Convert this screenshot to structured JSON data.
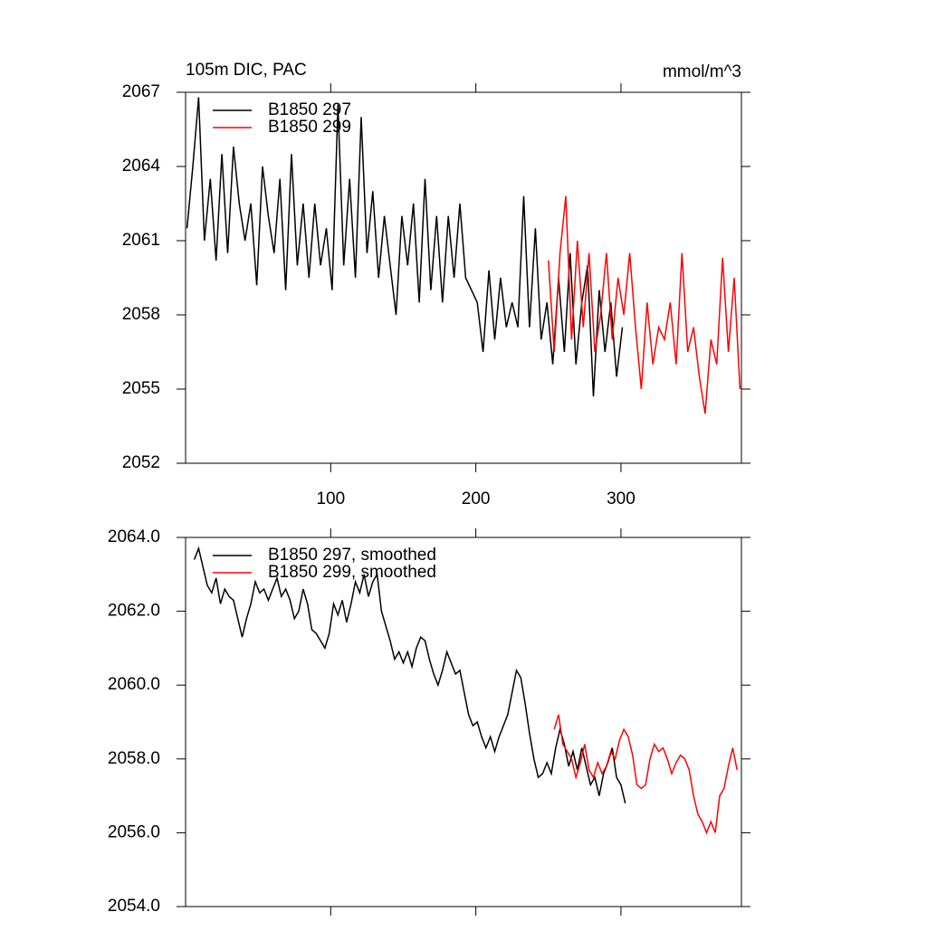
{
  "chart_data": [
    {
      "type": "line",
      "title": "105m DIC, PAC",
      "units": "mmol/m^3",
      "xlim": [
        0,
        383
      ],
      "xticks": [
        100,
        200,
        300
      ],
      "show_xtick_labels": true,
      "ylim": [
        2052,
        2067
      ],
      "yticks": [
        2052,
        2055,
        2058,
        2061,
        2064,
        2067
      ],
      "series": [
        {
          "name": "B1850 297",
          "color": "#000000",
          "x": [
            1,
            5,
            9,
            13,
            17,
            21,
            25,
            29,
            33,
            37,
            41,
            45,
            49,
            53,
            57,
            61,
            65,
            69,
            73,
            77,
            81,
            85,
            89,
            93,
            97,
            101,
            105,
            109,
            113,
            117,
            121,
            125,
            129,
            133,
            137,
            141,
            145,
            149,
            153,
            157,
            161,
            165,
            169,
            173,
            177,
            181,
            185,
            189,
            193,
            197,
            201,
            205,
            209,
            213,
            217,
            221,
            225,
            229,
            233,
            237,
            241,
            245,
            249,
            253,
            257,
            261,
            265,
            269,
            273,
            277,
            281,
            285,
            289,
            293,
            297,
            301
          ],
          "values": [
            2061.5,
            2064,
            2066.8,
            2061,
            2063.5,
            2060.2,
            2064.5,
            2060.5,
            2064.8,
            2062.5,
            2061,
            2062.5,
            2059.2,
            2064,
            2062,
            2060.5,
            2063.5,
            2059,
            2064.5,
            2060,
            2062.5,
            2059.5,
            2062.5,
            2060,
            2061.5,
            2059,
            2066.5,
            2060,
            2063.5,
            2059.5,
            2066,
            2060.5,
            2063,
            2059.5,
            2062,
            2060,
            2058,
            2062,
            2060,
            2062.5,
            2058.5,
            2063.5,
            2059,
            2062,
            2058.5,
            2062,
            2059.5,
            2062.5,
            2059.5,
            2059,
            2058.5,
            2056.5,
            2059.8,
            2057,
            2059.5,
            2057.5,
            2058.5,
            2057.5,
            2062.8,
            2057.5,
            2061.5,
            2057,
            2058.5,
            2056,
            2059.5,
            2056.5,
            2060.5,
            2056,
            2058.5,
            2060,
            2054.7,
            2059,
            2056.5,
            2058.5,
            2055.5,
            2057.5
          ]
        },
        {
          "name": "B1850 299",
          "color": "#ff0000",
          "x": [
            250,
            254,
            258,
            262,
            266,
            270,
            274,
            278,
            282,
            286,
            290,
            294,
            298,
            302,
            306,
            310,
            314,
            318,
            322,
            326,
            330,
            334,
            338,
            342,
            346,
            350,
            354,
            358,
            362,
            366,
            370,
            374,
            378,
            382
          ],
          "values": [
            2060.2,
            2056.5,
            2060.5,
            2062.8,
            2057,
            2061,
            2057.5,
            2060.5,
            2056.5,
            2058,
            2060.5,
            2057,
            2059.5,
            2058,
            2060.5,
            2057.5,
            2055,
            2058.5,
            2056,
            2057.5,
            2057,
            2058.5,
            2056,
            2060.5,
            2056.5,
            2057.5,
            2055.5,
            2054,
            2057,
            2056,
            2060.3,
            2056.5,
            2059.5,
            2055
          ]
        }
      ]
    },
    {
      "type": "line",
      "xlim": [
        0,
        383
      ],
      "xticks": [
        100,
        200,
        300
      ],
      "show_xtick_labels": false,
      "ylim": [
        2054,
        2064
      ],
      "yticks": [
        {
          "value": 2054,
          "label": "2054.0"
        },
        {
          "value": 2056,
          "label": "2056.0"
        },
        {
          "value": 2058,
          "label": "2058.0"
        },
        {
          "value": 2060,
          "label": "2060.0"
        },
        {
          "value": 2062,
          "label": "2062.0"
        },
        {
          "value": 2064,
          "label": "2064.0"
        }
      ],
      "series": [
        {
          "name": "B1850 297, smoothed",
          "color": "#000000",
          "x": [
            6,
            9,
            12,
            15,
            18,
            21,
            24,
            27,
            30,
            33,
            36,
            39,
            42,
            45,
            48,
            51,
            54,
            57,
            60,
            63,
            66,
            69,
            72,
            75,
            78,
            81,
            84,
            87,
            90,
            93,
            96,
            99,
            102,
            105,
            108,
            111,
            114,
            117,
            120,
            123,
            126,
            129,
            132,
            135,
            138,
            141,
            144,
            147,
            150,
            153,
            156,
            159,
            162,
            165,
            168,
            171,
            174,
            177,
            180,
            183,
            186,
            189,
            192,
            195,
            198,
            201,
            204,
            207,
            210,
            213,
            216,
            219,
            222,
            225,
            228,
            231,
            234,
            237,
            240,
            243,
            246,
            249,
            252,
            255,
            258,
            261,
            264,
            267,
            270,
            273,
            276,
            279,
            282,
            285,
            288,
            291,
            294,
            297,
            300,
            303
          ],
          "values": [
            2063.4,
            2063.7,
            2063.2,
            2062.7,
            2062.5,
            2062.9,
            2062.2,
            2062.6,
            2062.4,
            2062.3,
            2061.8,
            2061.3,
            2061.8,
            2062.2,
            2062.8,
            2062.5,
            2062.6,
            2062.3,
            2062.6,
            2062.9,
            2062.4,
            2062.6,
            2062.3,
            2061.8,
            2062.0,
            2062.6,
            2062.2,
            2061.5,
            2061.4,
            2061.2,
            2061.0,
            2061.4,
            2062.2,
            2061.9,
            2062.3,
            2061.7,
            2062.2,
            2062.8,
            2062.5,
            2063.0,
            2062.4,
            2062.8,
            2063.0,
            2062.0,
            2061.6,
            2061.2,
            2060.7,
            2060.9,
            2060.6,
            2060.9,
            2060.5,
            2061.0,
            2061.3,
            2061.2,
            2060.7,
            2060.3,
            2060.0,
            2060.4,
            2060.9,
            2060.6,
            2060.3,
            2060.4,
            2059.8,
            2059.2,
            2058.9,
            2059.0,
            2058.6,
            2058.3,
            2058.6,
            2058.2,
            2058.6,
            2058.9,
            2059.2,
            2059.8,
            2060.4,
            2060.2,
            2059.5,
            2058.7,
            2058.0,
            2057.5,
            2057.6,
            2057.9,
            2057.6,
            2058.3,
            2058.8,
            2058.4,
            2057.8,
            2058.2,
            2057.7,
            2058.3,
            2057.8,
            2057.3,
            2057.5,
            2057.0,
            2057.6,
            2057.9,
            2058.3,
            2057.5,
            2057.3,
            2056.8
          ]
        },
        {
          "name": "B1850 299, smoothed",
          "color": "#ff0000",
          "x": [
            254,
            257,
            260,
            263,
            266,
            269,
            272,
            275,
            278,
            281,
            284,
            287,
            290,
            293,
            296,
            299,
            302,
            305,
            308,
            311,
            314,
            317,
            320,
            323,
            326,
            329,
            332,
            335,
            338,
            341,
            344,
            347,
            350,
            353,
            356,
            359,
            362,
            365,
            368,
            371,
            374,
            377,
            380
          ],
          "values": [
            2058.8,
            2059.2,
            2058.4,
            2058.2,
            2058.0,
            2057.5,
            2057.9,
            2058.4,
            2057.7,
            2057.5,
            2057.9,
            2057.6,
            2057.8,
            2058.2,
            2058.0,
            2058.5,
            2058.8,
            2058.6,
            2058.1,
            2057.3,
            2057.2,
            2057.3,
            2058.0,
            2058.4,
            2058.2,
            2058.3,
            2058.0,
            2057.6,
            2057.9,
            2058.1,
            2058.0,
            2057.7,
            2057.0,
            2056.5,
            2056.3,
            2056.0,
            2056.3,
            2056.0,
            2057.0,
            2057.2,
            2057.8,
            2058.3,
            2057.7
          ]
        }
      ]
    }
  ]
}
